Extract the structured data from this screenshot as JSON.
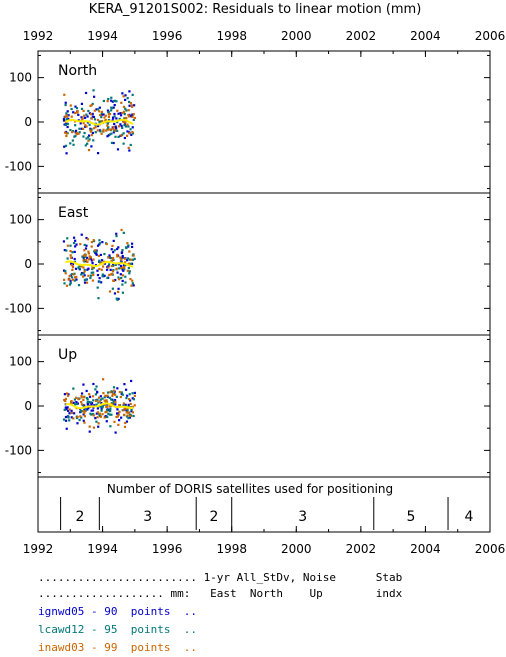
{
  "chart_data": {
    "type": "scatter",
    "title": "KERA_91201S002: Residuals to linear motion (mm)",
    "x_range": [
      1992,
      2006
    ],
    "x_ticks": [
      "1992",
      "1994",
      "1996",
      "1998",
      "2000",
      "2002",
      "2004",
      "2006"
    ],
    "y_ticks": [
      "100",
      "0",
      "-100"
    ],
    "ylim": [
      -160,
      160
    ],
    "series_colors": {
      "ignwd05": "#0000cc",
      "lcawd12": "#007777",
      "inawd03": "#cc6600",
      "smooth": "#ffee00"
    },
    "panels": [
      {
        "name": "North",
        "x_range": [
          1992.8,
          1995.0
        ],
        "spread": 26
      },
      {
        "name": "East",
        "x_range": [
          1992.8,
          1995.0
        ],
        "spread": 32
      },
      {
        "name": "Up",
        "x_range": [
          1992.8,
          1995.0
        ],
        "spread": 22
      }
    ],
    "satellites": {
      "caption": "Number of DORIS satellites used for positioning",
      "dividers": [
        1992.7,
        1993.9,
        1996.9,
        1998.0,
        2002.4,
        2004.7
      ],
      "segments": [
        {
          "from": 1992.7,
          "to": 1993.9,
          "label": "2"
        },
        {
          "from": 1993.9,
          "to": 1996.9,
          "label": "3"
        },
        {
          "from": 1996.9,
          "to": 1998.0,
          "label": "2"
        },
        {
          "from": 1998.0,
          "to": 2002.4,
          "label": "3"
        },
        {
          "from": 2002.4,
          "to": 2004.7,
          "label": "5"
        },
        {
          "from": 2004.7,
          "to": 2006.0,
          "label": "4"
        }
      ]
    }
  },
  "footer": {
    "header_line1": "........................ 1-yr All_StDv, Noise      Stab",
    "header_line2": "................... mm:   East  North    Up        indx",
    "rows": [
      {
        "text": "ignwd05 - 90  points  ..",
        "color": "#0000cc"
      },
      {
        "text": "lcawd12 - 95  points  ..",
        "color": "#007777"
      },
      {
        "text": "inawd03 - 99  points  ..",
        "color": "#cc6600"
      }
    ]
  }
}
